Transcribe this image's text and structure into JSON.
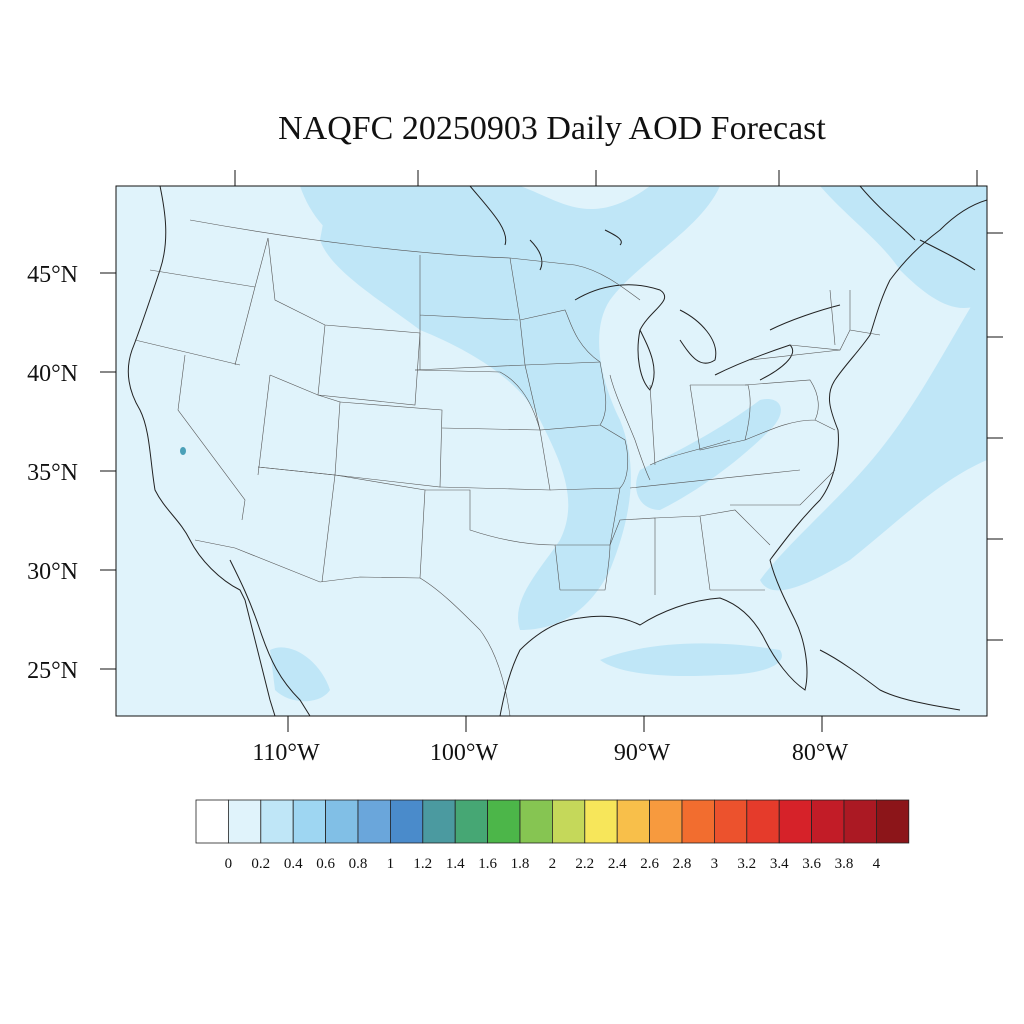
{
  "title": "NAQFC 20250903 Daily AOD Forecast",
  "lat_labels": [
    "45°N",
    "40°N",
    "35°N",
    "30°N",
    "25°N"
  ],
  "lon_labels": [
    "110°W",
    "100°W",
    "90°W",
    "80°W"
  ],
  "colorbar": {
    "colors": [
      "#ffffff",
      "#e0f3fb",
      "#bfe6f7",
      "#9ed6f2",
      "#81bfe6",
      "#6aa6db",
      "#4a8bcb",
      "#4b9aa0",
      "#46a774",
      "#4cb649",
      "#86c552",
      "#c5d85a",
      "#f7e65a",
      "#f8bf4a",
      "#f79a3e",
      "#f26d2f",
      "#ec522d",
      "#e53b2b",
      "#d62229",
      "#c21c27",
      "#ab1923",
      "#8c1519"
    ],
    "labels": [
      "0",
      "0.2",
      "0.4",
      "0.6",
      "0.8",
      "1",
      "1.2",
      "1.4",
      "1.6",
      "1.8",
      "2",
      "2.2",
      "2.4",
      "2.6",
      "2.8",
      "3",
      "3.2",
      "3.4",
      "3.6",
      "3.8",
      "4"
    ]
  },
  "map_colors": {
    "background": "#e0f3fb",
    "plume": "#bfe6f7",
    "hotspot": "#4aa0b8",
    "coast": "#222222",
    "state_border": "#555555"
  }
}
